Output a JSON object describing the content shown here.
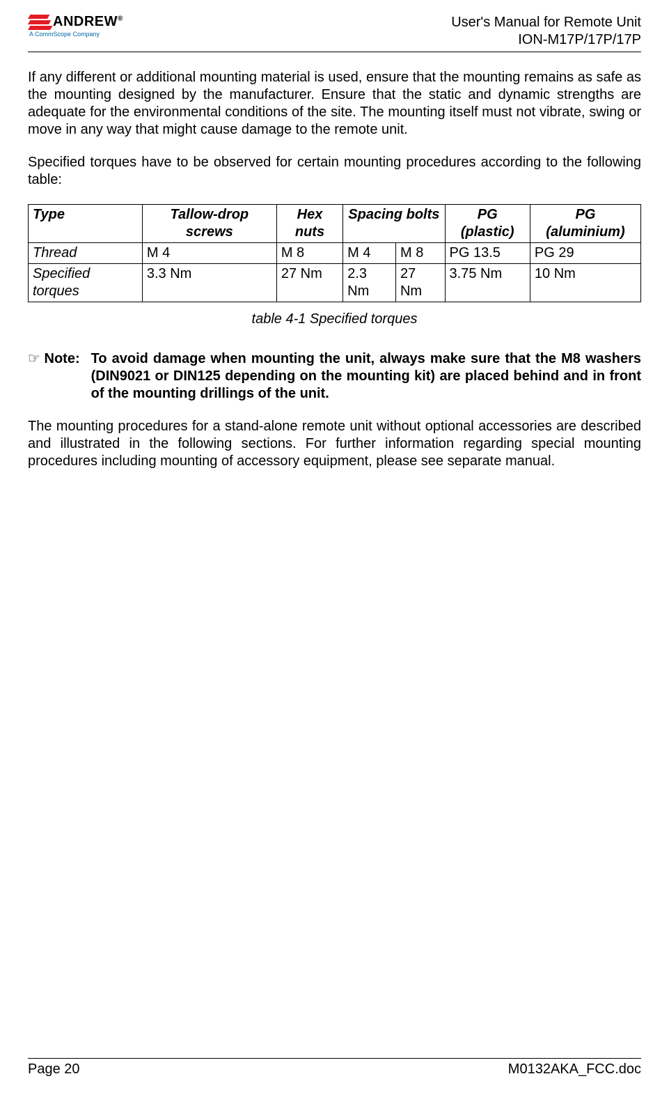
{
  "header": {
    "logo_name": "ANDREW",
    "logo_sub": "A CommScope Company",
    "title_line1": "User's Manual for Remote Unit",
    "title_line2": "ION-M17P/17P/17P"
  },
  "paragraphs": {
    "p1": "If any different or additional mounting material is used, ensure that the mounting remains as safe as the mounting designed by the manufacturer. Ensure that the static and dynamic strengths are adequate for the environmental conditions of the site. The mounting itself must not vibrate, swing or move in any way that might cause damage to the remote unit.",
    "p2": "Specified torques have to be observed for certain mounting procedures according to the following table:",
    "p3": "To avoid damage when mounting the unit, always make sure that the M8 washers (DIN9021 or DIN125 depending on the mounting kit) are placed behind and in front of the mounting drillings of the unit.",
    "p4": "The mounting procedures for a stand-alone remote unit without optional accessories are described and illustrated in the following sections. For further information regarding special mounting procedures including mounting of accessory equipment, please see separate manual."
  },
  "note_label": "Note:",
  "table": {
    "caption": "table 4-1 Specified torques",
    "columns": {
      "type": "Type",
      "tallow": "Tallow-drop screws",
      "hex": "Hex nuts",
      "spacing": "Spacing bolts",
      "pg_plastic": "PG (plastic)",
      "pg_alu": "PG (aluminium)"
    },
    "rows": {
      "thread": {
        "label": "Thread",
        "tallow": "M 4",
        "hex": "M 8",
        "spacing1": "M 4",
        "spacing2": "M 8",
        "pg_plastic": "PG 13.5",
        "pg_alu": "PG 29"
      },
      "torques": {
        "label": "Specified torques",
        "tallow": "3.3 Nm",
        "hex": "27 Nm",
        "spacing1": "2.3 Nm",
        "spacing2": "27 Nm",
        "pg_plastic": "3.75 Nm",
        "pg_alu": "10 Nm"
      }
    }
  },
  "footer": {
    "left": "Page 20",
    "right": "M0132AKA_FCC.doc"
  }
}
